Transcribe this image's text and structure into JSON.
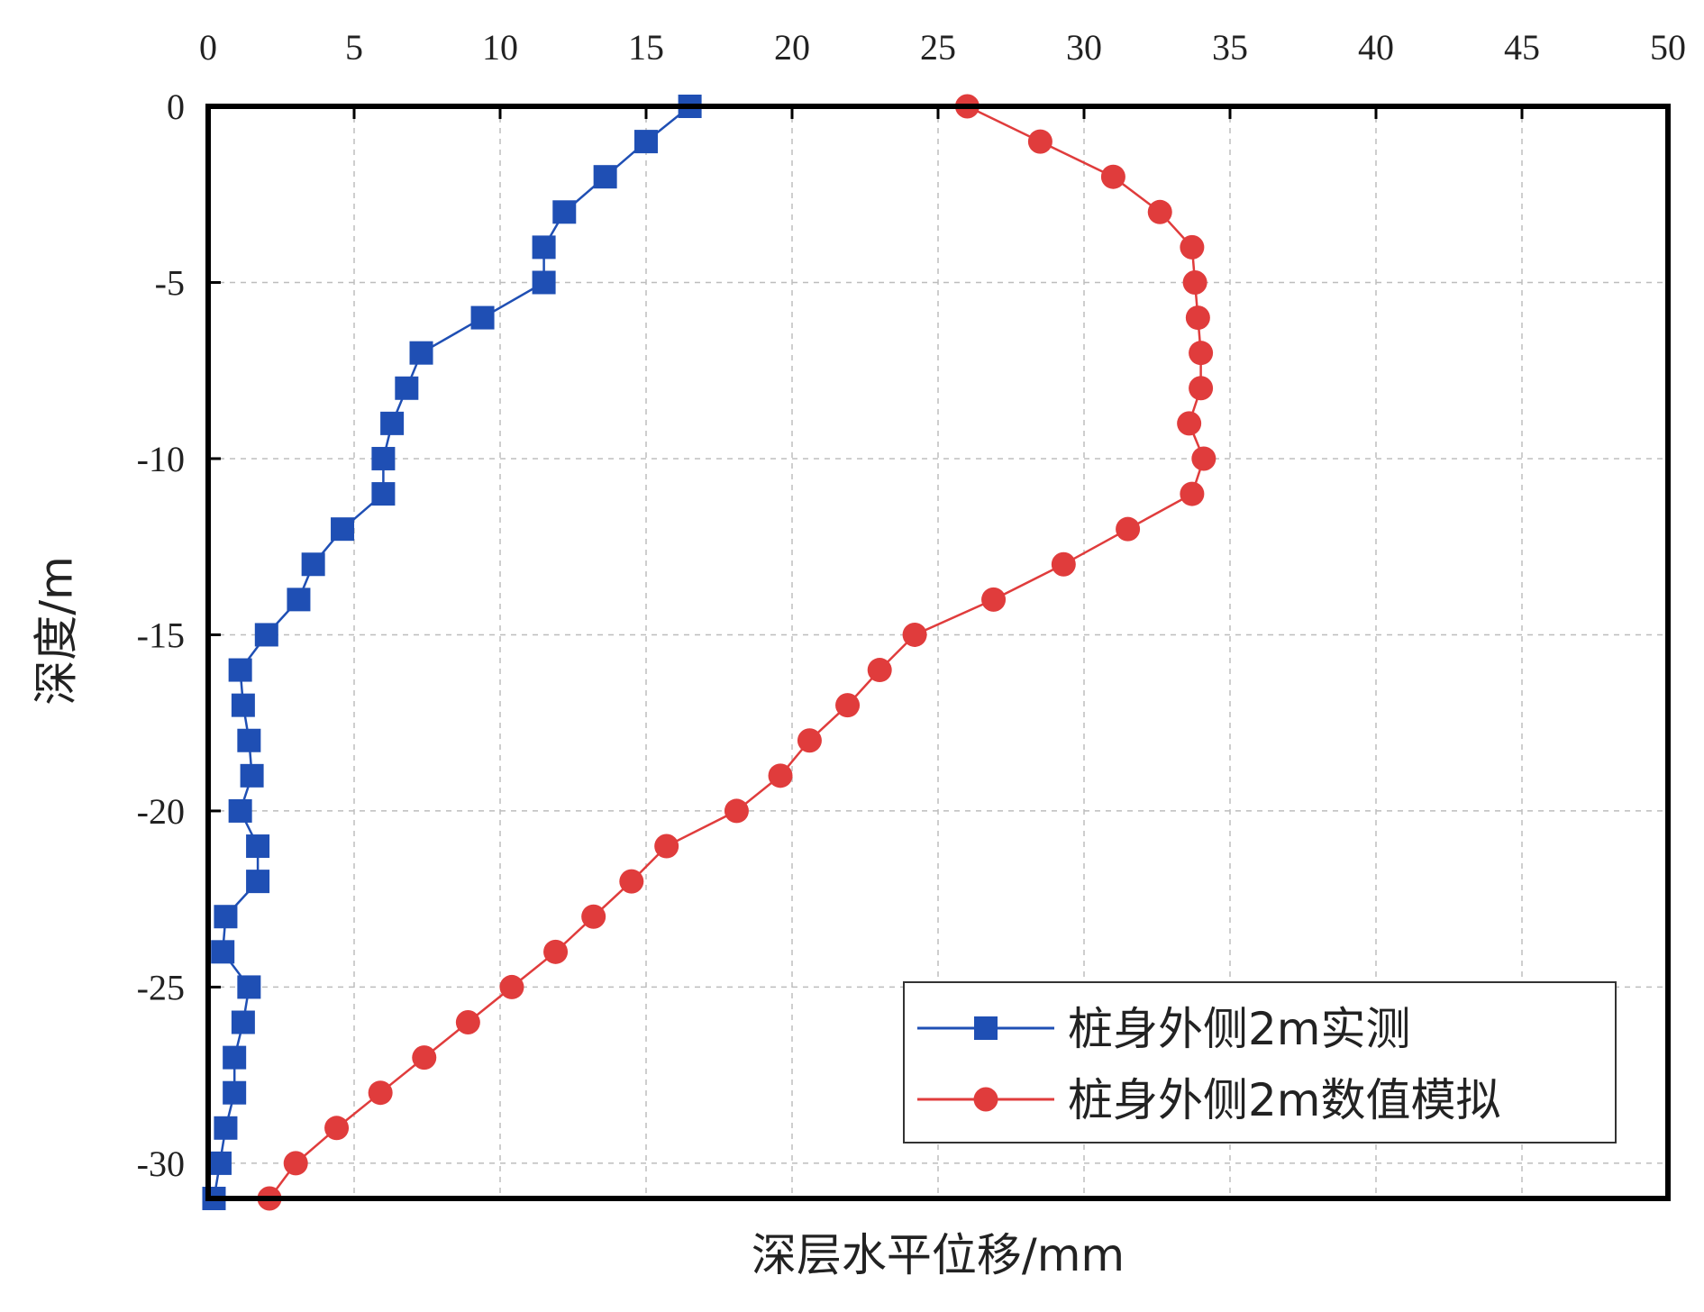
{
  "chart_data": {
    "type": "line",
    "title": "",
    "xlabel": "深层水平位移/mm",
    "ylabel": "深度/m",
    "xlim": [
      0,
      50
    ],
    "ylim": [
      -31,
      0
    ],
    "x_ticks": [
      0,
      5,
      10,
      15,
      20,
      25,
      30,
      35,
      40,
      45,
      50
    ],
    "y_ticks": [
      0,
      -5,
      -10,
      -15,
      -20,
      -25,
      -30
    ],
    "x_axis_position": "top",
    "grid": true,
    "legend_position": "bottom-right",
    "series": [
      {
        "name": "桩身外侧2m实测",
        "color": "#1f4fb4",
        "marker": "square",
        "points": [
          {
            "x": 16.5,
            "y": 0
          },
          {
            "x": 15.0,
            "y": -1
          },
          {
            "x": 13.6,
            "y": -2
          },
          {
            "x": 12.2,
            "y": -3
          },
          {
            "x": 11.5,
            "y": -4
          },
          {
            "x": 11.5,
            "y": -5
          },
          {
            "x": 9.4,
            "y": -6
          },
          {
            "x": 7.3,
            "y": -7
          },
          {
            "x": 6.8,
            "y": -8
          },
          {
            "x": 6.3,
            "y": -9
          },
          {
            "x": 6.0,
            "y": -10
          },
          {
            "x": 6.0,
            "y": -11
          },
          {
            "x": 4.6,
            "y": -12
          },
          {
            "x": 3.6,
            "y": -13
          },
          {
            "x": 3.1,
            "y": -14
          },
          {
            "x": 2.0,
            "y": -15
          },
          {
            "x": 1.1,
            "y": -16
          },
          {
            "x": 1.2,
            "y": -17
          },
          {
            "x": 1.4,
            "y": -18
          },
          {
            "x": 1.5,
            "y": -19
          },
          {
            "x": 1.1,
            "y": -20
          },
          {
            "x": 1.7,
            "y": -21
          },
          {
            "x": 1.7,
            "y": -22
          },
          {
            "x": 0.6,
            "y": -23
          },
          {
            "x": 0.5,
            "y": -24
          },
          {
            "x": 1.4,
            "y": -25
          },
          {
            "x": 1.2,
            "y": -26
          },
          {
            "x": 0.9,
            "y": -27
          },
          {
            "x": 0.9,
            "y": -28
          },
          {
            "x": 0.6,
            "y": -29
          },
          {
            "x": 0.4,
            "y": -30
          },
          {
            "x": 0.2,
            "y": -31
          }
        ]
      },
      {
        "name": "桩身外侧2m数值模拟",
        "color": "#e03c3c",
        "marker": "circle",
        "points": [
          {
            "x": 26.0,
            "y": 0
          },
          {
            "x": 28.5,
            "y": -1
          },
          {
            "x": 31.0,
            "y": -2
          },
          {
            "x": 32.6,
            "y": -3
          },
          {
            "x": 33.7,
            "y": -4
          },
          {
            "x": 33.8,
            "y": -5
          },
          {
            "x": 33.9,
            "y": -6
          },
          {
            "x": 34.0,
            "y": -7
          },
          {
            "x": 34.0,
            "y": -8
          },
          {
            "x": 33.6,
            "y": -9
          },
          {
            "x": 34.1,
            "y": -10
          },
          {
            "x": 33.7,
            "y": -11
          },
          {
            "x": 31.5,
            "y": -12
          },
          {
            "x": 29.3,
            "y": -13
          },
          {
            "x": 26.9,
            "y": -14
          },
          {
            "x": 24.2,
            "y": -15
          },
          {
            "x": 23.0,
            "y": -16
          },
          {
            "x": 21.9,
            "y": -17
          },
          {
            "x": 20.6,
            "y": -18
          },
          {
            "x": 19.6,
            "y": -19
          },
          {
            "x": 18.1,
            "y": -20
          },
          {
            "x": 15.7,
            "y": -21
          },
          {
            "x": 14.5,
            "y": -22
          },
          {
            "x": 13.2,
            "y": -23
          },
          {
            "x": 11.9,
            "y": -24
          },
          {
            "x": 10.4,
            "y": -25
          },
          {
            "x": 8.9,
            "y": -26
          },
          {
            "x": 7.4,
            "y": -27
          },
          {
            "x": 5.9,
            "y": -28
          },
          {
            "x": 4.4,
            "y": -29
          },
          {
            "x": 3.0,
            "y": -30
          },
          {
            "x": 2.1,
            "y": -31
          }
        ]
      }
    ]
  }
}
